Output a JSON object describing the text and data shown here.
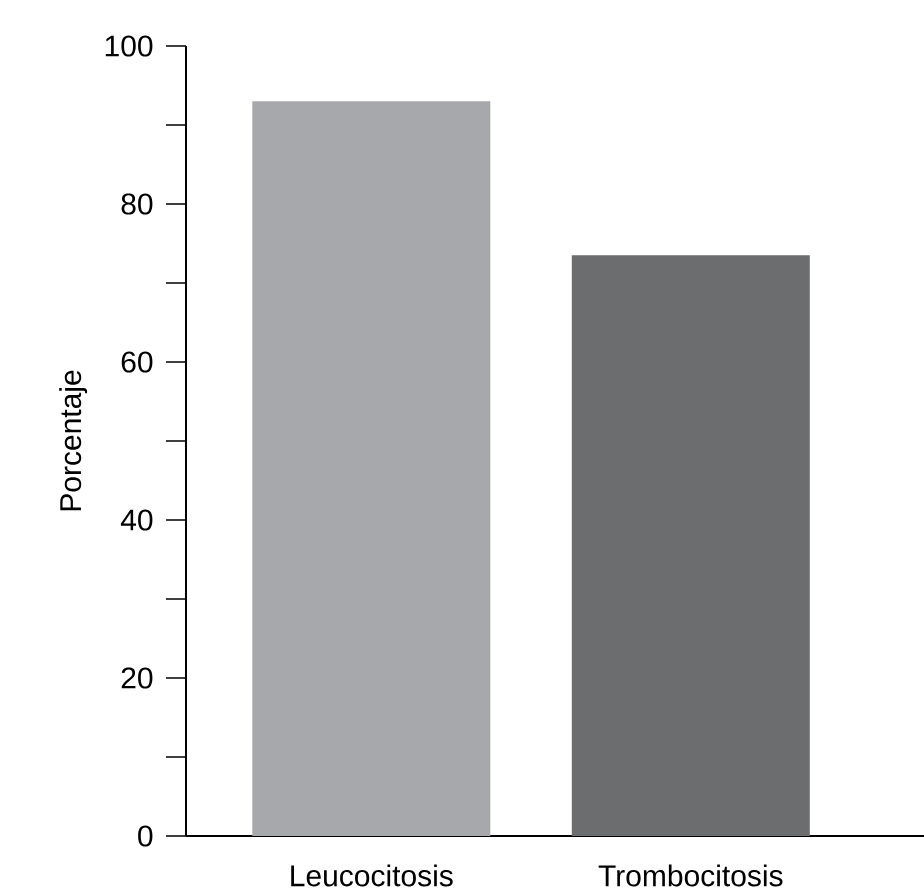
{
  "chart_data": {
    "type": "bar",
    "ylabel": "Porcentaje",
    "categories": [
      "Leucocitosis",
      "Trombocitosis"
    ],
    "values": [
      93,
      73.5
    ],
    "colors": [
      "#a7a8ab",
      "#6c6d6f"
    ],
    "ylim": [
      0,
      100
    ],
    "yticks": [
      0,
      {
        "value": 10,
        "label": null
      },
      20,
      {
        "value": 30,
        "label": null
      },
      40,
      {
        "value": 50,
        "label": null
      },
      60,
      {
        "value": 70,
        "label": null
      },
      80,
      {
        "value": 90,
        "label": null
      },
      100
    ],
    "grid": false
  }
}
